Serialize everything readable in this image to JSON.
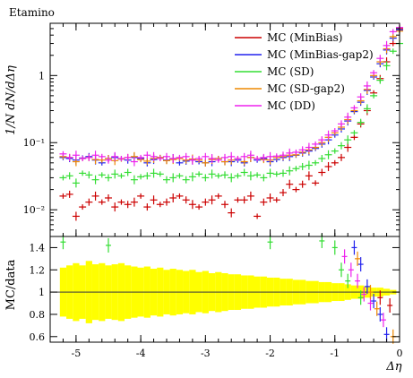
{
  "title": "Etamino",
  "ylabel_top": "1/N dN/dΔη",
  "ylabel_bottom": "MC/data",
  "xlabel": "Δη",
  "colors": {
    "minbias": "#cc0000",
    "minbias_gap2": "#2222ee",
    "sd": "#33dd33",
    "sd_gap2": "#ee8800",
    "dd": "#ee22ee",
    "band": "#ffff00",
    "data": "#000000"
  },
  "chart_data": [
    {
      "type": "scatter",
      "panel": "main",
      "ylabel": "1/N dN/dΔη",
      "yscale": "log",
      "xlim": [
        -5.4,
        0
      ],
      "ylim": [
        0.004,
        6
      ],
      "yticks": [
        {
          "value": 0.01,
          "label": "10⁻²"
        },
        {
          "value": 0.1,
          "label": "10⁻¹"
        },
        {
          "value": 1,
          "label": "1"
        }
      ],
      "x": [
        -5.2,
        -5.1,
        -5.0,
        -4.9,
        -4.8,
        -4.7,
        -4.6,
        -4.5,
        -4.4,
        -4.3,
        -4.2,
        -4.1,
        -4.0,
        -3.9,
        -3.8,
        -3.7,
        -3.6,
        -3.5,
        -3.4,
        -3.3,
        -3.2,
        -3.1,
        -3.0,
        -2.9,
        -2.8,
        -2.7,
        -2.6,
        -2.5,
        -2.4,
        -2.3,
        -2.2,
        -2.1,
        -2.0,
        -1.9,
        -1.8,
        -1.7,
        -1.6,
        -1.5,
        -1.4,
        -1.3,
        -1.2,
        -1.1,
        -1.0,
        -0.9,
        -0.8,
        -0.7,
        -0.6,
        -0.5,
        -0.4,
        -0.3,
        -0.2,
        -0.1,
        0.0
      ],
      "series": [
        {
          "name": "MC (MinBias)",
          "color": "#cc0000",
          "values": [
            0.016,
            0.017,
            0.008,
            0.011,
            0.013,
            0.016,
            0.013,
            0.015,
            0.011,
            0.013,
            0.012,
            0.013,
            0.016,
            0.011,
            0.014,
            0.012,
            0.013,
            0.015,
            0.016,
            0.014,
            0.012,
            0.011,
            0.013,
            0.014,
            0.016,
            0.012,
            0.009,
            0.014,
            0.014,
            0.016,
            0.008,
            0.013,
            0.015,
            0.014,
            0.018,
            0.024,
            0.02,
            0.024,
            0.032,
            0.025,
            0.036,
            0.044,
            0.05,
            0.06,
            0.085,
            0.12,
            0.19,
            0.3,
            0.55,
            0.9,
            1.6,
            3.0,
            5.0
          ]
        },
        {
          "name": "MC (MinBias-gap2)",
          "color": "#2222ee",
          "values": [
            0.06,
            0.058,
            0.055,
            0.059,
            0.062,
            0.055,
            0.05,
            0.058,
            0.06,
            0.057,
            0.055,
            0.06,
            0.058,
            0.05,
            0.056,
            0.06,
            0.055,
            0.058,
            0.05,
            0.053,
            0.055,
            0.052,
            0.05,
            0.052,
            0.058,
            0.052,
            0.052,
            0.055,
            0.05,
            0.06,
            0.055,
            0.058,
            0.052,
            0.056,
            0.06,
            0.062,
            0.065,
            0.07,
            0.075,
            0.082,
            0.095,
            0.11,
            0.13,
            0.16,
            0.21,
            0.29,
            0.4,
            0.6,
            0.95,
            1.5,
            2.4,
            3.6,
            4.8
          ]
        },
        {
          "name": "MC (SD)",
          "color": "#33dd33",
          "values": [
            0.03,
            0.032,
            0.025,
            0.035,
            0.033,
            0.028,
            0.033,
            0.03,
            0.034,
            0.032,
            0.036,
            0.028,
            0.031,
            0.032,
            0.035,
            0.034,
            0.028,
            0.03,
            0.032,
            0.028,
            0.031,
            0.034,
            0.03,
            0.034,
            0.032,
            0.033,
            0.03,
            0.032,
            0.036,
            0.032,
            0.033,
            0.03,
            0.035,
            0.034,
            0.035,
            0.038,
            0.041,
            0.044,
            0.046,
            0.05,
            0.058,
            0.066,
            0.075,
            0.09,
            0.11,
            0.14,
            0.2,
            0.32,
            0.5,
            0.85,
            1.4,
            2.3,
            3.0
          ]
        },
        {
          "name": "MC (SD-gap2)",
          "color": "#ee8800",
          "values": [
            0.062,
            0.06,
            0.052,
            0.058,
            0.06,
            0.056,
            0.055,
            0.058,
            0.054,
            0.057,
            0.06,
            0.062,
            0.056,
            0.053,
            0.058,
            0.06,
            0.054,
            0.056,
            0.058,
            0.055,
            0.057,
            0.055,
            0.05,
            0.056,
            0.058,
            0.052,
            0.055,
            0.058,
            0.052,
            0.06,
            0.058,
            0.056,
            0.055,
            0.06,
            0.062,
            0.065,
            0.066,
            0.072,
            0.078,
            0.085,
            0.1,
            0.12,
            0.14,
            0.17,
            0.22,
            0.3,
            0.42,
            0.62,
            1.0,
            1.6,
            2.5,
            3.8,
            4.6
          ]
        },
        {
          "name": "MC (DD)",
          "color": "#ee22ee",
          "values": [
            0.068,
            0.06,
            0.065,
            0.058,
            0.06,
            0.065,
            0.062,
            0.055,
            0.062,
            0.058,
            0.06,
            0.052,
            0.06,
            0.065,
            0.062,
            0.058,
            0.062,
            0.058,
            0.06,
            0.062,
            0.055,
            0.058,
            0.062,
            0.058,
            0.055,
            0.06,
            0.062,
            0.058,
            0.062,
            0.065,
            0.058,
            0.06,
            0.062,
            0.063,
            0.065,
            0.07,
            0.072,
            0.078,
            0.085,
            0.095,
            0.11,
            0.13,
            0.15,
            0.19,
            0.24,
            0.33,
            0.48,
            0.7,
            1.1,
            1.8,
            2.8,
            4.5,
            5.2
          ]
        }
      ],
      "legend": {
        "position": "top-right"
      }
    },
    {
      "type": "scatter",
      "panel": "ratio",
      "ylabel": "MC/data",
      "xlabel": "Δη",
      "xlim": [
        -5.4,
        0
      ],
      "ylim": [
        0.55,
        1.5
      ],
      "yticks": [
        0.6,
        0.8,
        1,
        1.2,
        1.4
      ],
      "xticks": [
        -5,
        -4,
        -3,
        -2,
        -1,
        0
      ],
      "reference": 1.0,
      "band_x": [
        -5.2,
        -5.1,
        -5.0,
        -4.9,
        -4.8,
        -4.7,
        -4.6,
        -4.5,
        -4.4,
        -4.3,
        -4.2,
        -4.1,
        -4.0,
        -3.9,
        -3.8,
        -3.7,
        -3.6,
        -3.5,
        -3.4,
        -3.3,
        -3.2,
        -3.1,
        -3.0,
        -2.9,
        -2.8,
        -2.7,
        -2.6,
        -2.5,
        -2.4,
        -2.3,
        -2.2,
        -2.1,
        -2.0,
        -1.9,
        -1.8,
        -1.7,
        -1.6,
        -1.5,
        -1.4,
        -1.3,
        -1.2,
        -1.1,
        -1.0,
        -0.9,
        -0.8,
        -0.7,
        -0.6,
        -0.5,
        -0.4,
        -0.3,
        -0.2,
        -0.1
      ],
      "band_halfwidth": [
        0.22,
        0.24,
        0.26,
        0.24,
        0.28,
        0.25,
        0.26,
        0.24,
        0.25,
        0.26,
        0.24,
        0.23,
        0.22,
        0.23,
        0.21,
        0.22,
        0.2,
        0.21,
        0.2,
        0.19,
        0.2,
        0.18,
        0.19,
        0.17,
        0.18,
        0.17,
        0.16,
        0.16,
        0.15,
        0.15,
        0.14,
        0.14,
        0.13,
        0.13,
        0.12,
        0.12,
        0.11,
        0.11,
        0.1,
        0.1,
        0.09,
        0.09,
        0.08,
        0.08,
        0.07,
        0.06,
        0.06,
        0.05,
        0.04,
        0.04,
        0.03,
        0.02
      ],
      "markers": [
        {
          "series": "MC (SD)",
          "x": -5.2,
          "y": 1.45
        },
        {
          "series": "MC (SD)",
          "x": -4.5,
          "y": 1.42
        },
        {
          "series": "MC (SD)",
          "x": -2.0,
          "y": 1.45
        },
        {
          "series": "MC (SD)",
          "x": -1.2,
          "y": 1.46
        },
        {
          "series": "MC (SD)",
          "x": -1.0,
          "y": 1.4
        },
        {
          "series": "MC (SD)",
          "x": -0.9,
          "y": 1.2
        },
        {
          "series": "MC (SD)",
          "x": -0.8,
          "y": 1.1
        },
        {
          "series": "MC (SD)",
          "x": -0.6,
          "y": 0.95
        },
        {
          "series": "MC (DD)",
          "x": -0.85,
          "y": 1.32
        },
        {
          "series": "MC (DD)",
          "x": -0.75,
          "y": 1.2
        },
        {
          "series": "MC (DD)",
          "x": -0.65,
          "y": 1.1
        },
        {
          "series": "MC (DD)",
          "x": -0.55,
          "y": 0.98
        },
        {
          "series": "MC (DD)",
          "x": -0.45,
          "y": 0.9
        },
        {
          "series": "MC (DD)",
          "x": -0.25,
          "y": 0.75
        },
        {
          "series": "MC (MinBias-gap2)",
          "x": -0.7,
          "y": 1.4
        },
        {
          "series": "MC (MinBias-gap2)",
          "x": -0.6,
          "y": 1.25
        },
        {
          "series": "MC (MinBias-gap2)",
          "x": -0.5,
          "y": 1.05
        },
        {
          "series": "MC (MinBias-gap2)",
          "x": -0.4,
          "y": 0.92
        },
        {
          "series": "MC (MinBias-gap2)",
          "x": -0.3,
          "y": 0.8
        },
        {
          "series": "MC (MinBias-gap2)",
          "x": -0.2,
          "y": 0.62
        },
        {
          "series": "MC (SD-gap2)",
          "x": -0.65,
          "y": 1.3
        },
        {
          "series": "MC (SD-gap2)",
          "x": -0.45,
          "y": 1.0
        },
        {
          "series": "MC (SD-gap2)",
          "x": -0.35,
          "y": 0.85
        },
        {
          "series": "MC (SD-gap2)",
          "x": -0.1,
          "y": 0.6
        },
        {
          "series": "MC (MinBias)",
          "x": -0.3,
          "y": 0.95
        },
        {
          "series": "MC (MinBias)",
          "x": -0.15,
          "y": 0.88
        }
      ]
    }
  ]
}
